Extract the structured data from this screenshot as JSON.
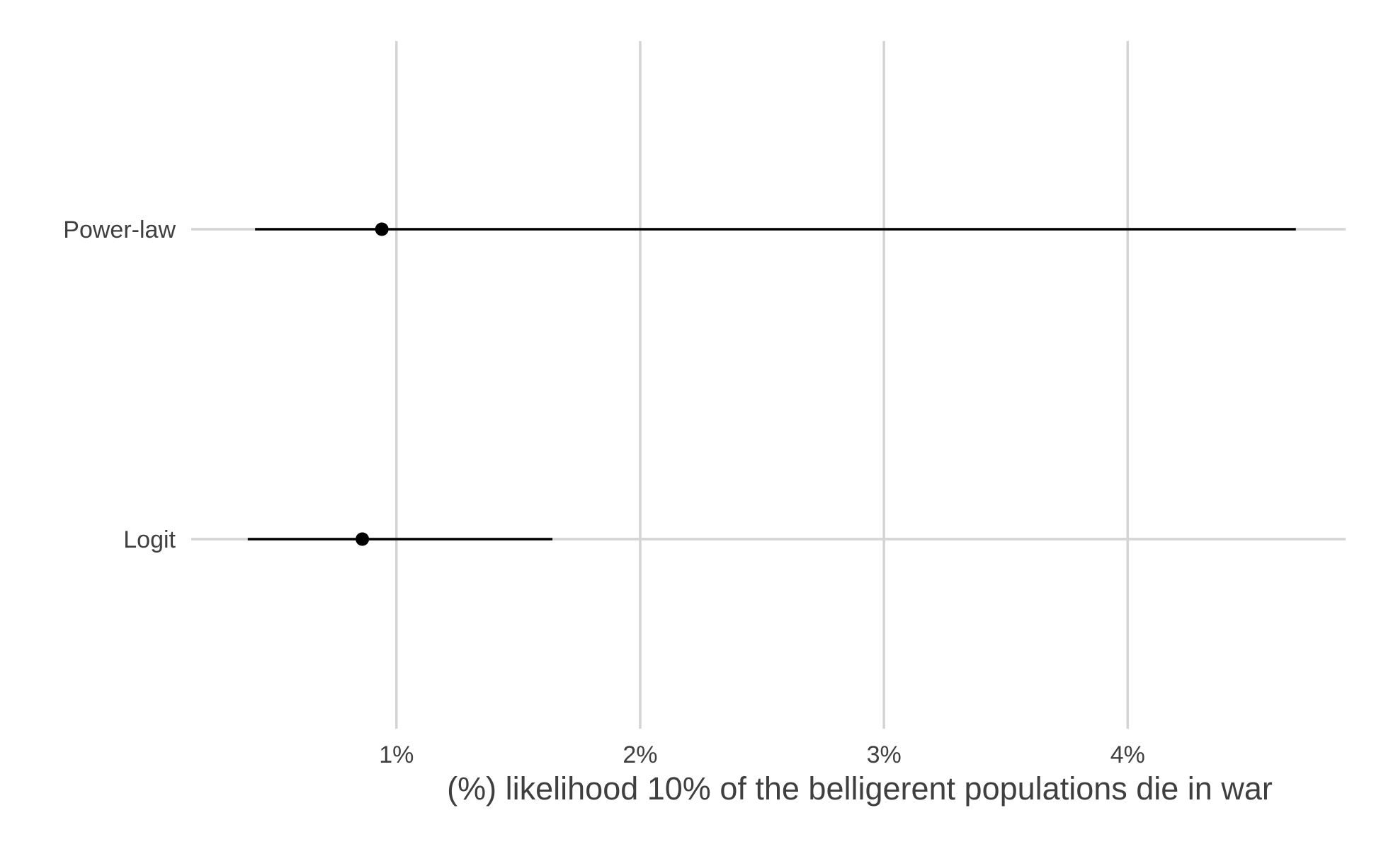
{
  "chart_data": {
    "type": "interval",
    "title": "",
    "xlabel": "(%) likelihood 10% of the belligerent populations die in war",
    "ylabel": "",
    "xlim": [
      0.158,
      4.894
    ],
    "x_ticks": [
      1,
      2,
      3,
      4
    ],
    "x_tick_labels": [
      "1%",
      "2%",
      "3%",
      "4%"
    ],
    "categories": [
      "Power-law",
      "Logit"
    ],
    "estimates": [
      {
        "label": "Power-law",
        "point": 0.94,
        "low": 0.42,
        "high": 4.69
      },
      {
        "label": "Logit",
        "point": 0.86,
        "low": 0.39,
        "high": 1.64
      }
    ],
    "grid": true,
    "colors": {
      "grid": "#d4d4d4",
      "mark": "#000000",
      "text": "#3f3f3f"
    }
  }
}
